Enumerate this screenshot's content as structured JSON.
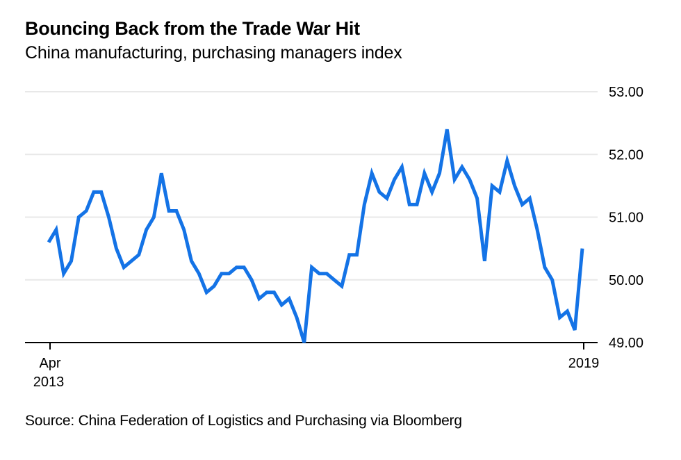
{
  "header": {
    "title": "Bouncing Back from the Trade War Hit",
    "subtitle": "China manufacturing, purchasing managers index"
  },
  "footer": {
    "source": "Source: China Federation of Logistics and Purchasing via Bloomberg"
  },
  "colors": {
    "line": "#1473E6",
    "grid": "#E8E8E8",
    "axis": "#000000"
  },
  "chart_data": {
    "type": "line",
    "title": "Bouncing Back from the Trade War Hit",
    "subtitle": "China manufacturing, purchasing managers index",
    "xlabel": "",
    "ylabel": "",
    "ylim": [
      49,
      53
    ],
    "yticks": [
      53,
      52,
      51,
      50,
      49
    ],
    "ytick_labels": [
      "53.00",
      "52.00",
      "51.00",
      "50.00",
      "49.00"
    ],
    "y_axis_position": "right",
    "grid": true,
    "legend": "none",
    "x_start": "Apr 2013",
    "x_end": "Mar 2019",
    "x_frequency": "monthly",
    "xtick_labels": [
      {
        "index": 0,
        "line1": "Apr",
        "line2": "2013"
      },
      {
        "index": 71,
        "line1": "2019",
        "line2": ""
      }
    ],
    "series": [
      {
        "name": "China manufacturing PMI",
        "values": [
          50.6,
          50.8,
          50.1,
          50.3,
          51.0,
          51.1,
          51.4,
          51.4,
          51.0,
          50.5,
          50.2,
          50.3,
          50.4,
          50.8,
          51.0,
          51.7,
          51.1,
          51.1,
          50.8,
          50.3,
          50.1,
          49.8,
          49.9,
          50.1,
          50.1,
          50.2,
          50.2,
          50.0,
          49.7,
          49.8,
          49.8,
          49.6,
          49.7,
          49.4,
          49.0,
          50.2,
          50.1,
          50.1,
          50.0,
          49.9,
          50.4,
          50.4,
          51.2,
          51.7,
          51.4,
          51.3,
          51.6,
          51.8,
          51.2,
          51.2,
          51.7,
          51.4,
          51.7,
          52.4,
          51.6,
          51.8,
          51.6,
          51.3,
          50.3,
          51.5,
          51.4,
          51.9,
          51.5,
          51.2,
          51.3,
          50.8,
          50.2,
          50.0,
          49.4,
          49.5,
          49.2,
          50.5
        ]
      }
    ],
    "source": "Source: China Federation of Logistics and Purchasing via Bloomberg"
  }
}
